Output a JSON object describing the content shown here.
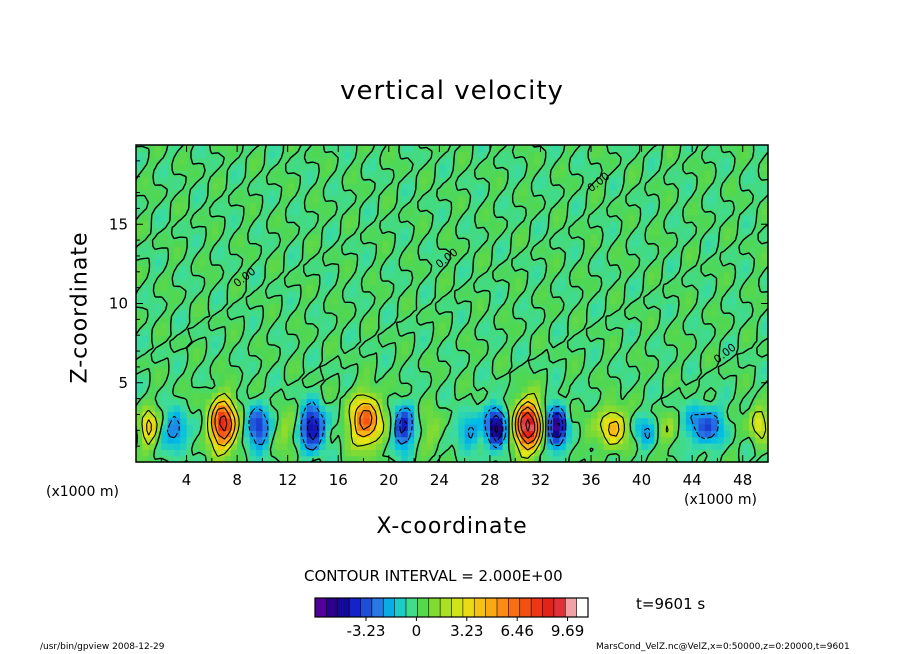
{
  "chart_data": {
    "type": "heatmap",
    "title": "vertical velocity",
    "xlabel": "X-coordinate",
    "ylabel": "Z-coordinate",
    "x_unit_label": "(x1000 m)",
    "xlim": [
      0,
      50
    ],
    "ylim": [
      0,
      20
    ],
    "x_ticks": [
      4,
      8,
      12,
      16,
      20,
      24,
      28,
      32,
      36,
      40,
      44,
      48
    ],
    "y_ticks": [
      5,
      10,
      15
    ],
    "colorbar": {
      "ticks": [
        -3.23,
        0,
        3.23,
        6.46,
        9.69
      ],
      "tick_labels": [
        "-3.23",
        "0",
        "3.23",
        "6.46",
        "9.69"
      ],
      "range": [
        -6.5,
        11
      ]
    },
    "contour_interval_text": "CONTOUR INTERVAL = 2.000E+00",
    "contour_label": "0.00",
    "time_text": "t=9601 s",
    "features": [
      {
        "x": 1.0,
        "z": 2.2,
        "w": 5.0,
        "sx": 0.6,
        "sz": 1.0
      },
      {
        "x": 3.2,
        "z": 2.0,
        "w": -3.0,
        "sx": 0.9,
        "sz": 1.1
      },
      {
        "x": 6.9,
        "z": 2.4,
        "w": 9.0,
        "sx": 1.0,
        "sz": 1.5
      },
      {
        "x": 9.6,
        "z": 2.2,
        "w": -4.5,
        "sx": 0.8,
        "sz": 1.3
      },
      {
        "x": 11.8,
        "z": 2.0,
        "w": 1.5,
        "sx": 0.8,
        "sz": 1.1
      },
      {
        "x": 14.0,
        "z": 2.2,
        "w": -5.5,
        "sx": 0.9,
        "sz": 1.3
      },
      {
        "x": 18.2,
        "z": 2.6,
        "w": 7.0,
        "sx": 1.2,
        "sz": 1.5
      },
      {
        "x": 21.1,
        "z": 2.2,
        "w": -4.5,
        "sx": 0.8,
        "sz": 1.3
      },
      {
        "x": 23.5,
        "z": 2.0,
        "w": 1.5,
        "sx": 0.8,
        "sz": 1.1
      },
      {
        "x": 26.2,
        "z": 2.0,
        "w": -2.5,
        "sx": 0.9,
        "sz": 1.0
      },
      {
        "x": 28.5,
        "z": 2.2,
        "w": -6.5,
        "sx": 0.7,
        "sz": 1.3
      },
      {
        "x": 31.0,
        "z": 2.3,
        "w": 10.5,
        "sx": 1.0,
        "sz": 1.5
      },
      {
        "x": 33.3,
        "z": 2.2,
        "w": -6.5,
        "sx": 0.7,
        "sz": 1.3
      },
      {
        "x": 35.6,
        "z": 2.0,
        "w": 1.0,
        "sx": 0.8,
        "sz": 1.0
      },
      {
        "x": 37.8,
        "z": 2.2,
        "w": 5.0,
        "sx": 0.9,
        "sz": 1.2
      },
      {
        "x": 40.2,
        "z": 2.0,
        "w": -2.0,
        "sx": 0.9,
        "sz": 1.0
      },
      {
        "x": 42.0,
        "z": 2.0,
        "w": 1.5,
        "sx": 0.8,
        "sz": 1.0
      },
      {
        "x": 45.0,
        "z": 2.3,
        "w": -3.5,
        "sx": 1.3,
        "sz": 1.2
      },
      {
        "x": 49.3,
        "z": 2.5,
        "w": 4.0,
        "sx": 0.6,
        "sz": 1.1
      }
    ]
  },
  "footer": {
    "left": "/usr/bin/gpview   2008-12-29",
    "right": "MarsCond_VelZ.nc@VelZ,x=0:50000,z=0:20000,t=9601"
  }
}
